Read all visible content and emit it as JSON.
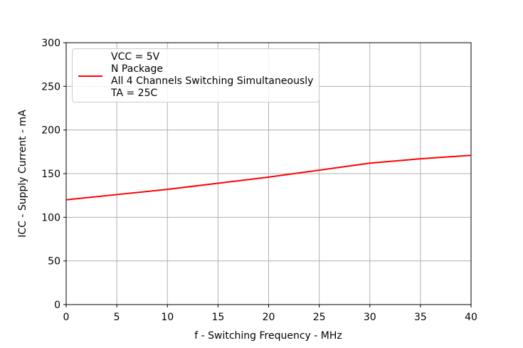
{
  "chart_data": {
    "type": "line",
    "x_label": "f - Switching Frequency - MHz",
    "y_label": "ICC - Supply Current - mA",
    "x": [
      0,
      5,
      10,
      15,
      20,
      25,
      30,
      35,
      40
    ],
    "series": [
      {
        "name": "VCC = 5V\nN Package\nAll 4 Channels Switching Simultaneously\nTA = 25C",
        "color": "#ff0000",
        "values": [
          120,
          126,
          132,
          139,
          146,
          154,
          162,
          167,
          171
        ]
      }
    ],
    "xlim": [
      0,
      40
    ],
    "xticks": [
      0,
      5,
      10,
      15,
      20,
      25,
      30,
      35,
      40
    ],
    "ylim": [
      0,
      300
    ],
    "yticks": [
      0,
      50,
      100,
      150,
      200,
      250,
      300
    ],
    "grid": true,
    "legend": "upper-left"
  }
}
